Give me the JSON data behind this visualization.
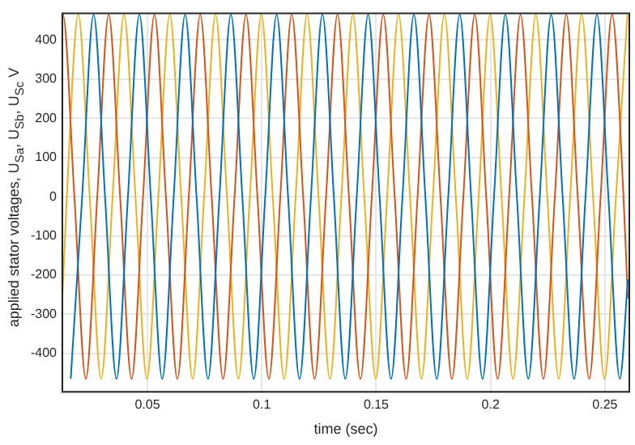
{
  "chart_data": {
    "type": "line",
    "xlabel": "time (sec)",
    "ylabel": "applied stator voltages, U$_{Sa}$, U$_{Sb}$, U$_{Sc}$ V",
    "xlim": [
      0.0125,
      0.261
    ],
    "ylim": [
      -500,
      470
    ],
    "xticks": [
      0.05,
      0.1,
      0.15,
      0.2,
      0.25
    ],
    "yticks": [
      -400,
      -300,
      -200,
      -100,
      0,
      100,
      200,
      300,
      400
    ],
    "grid": true,
    "legend": false,
    "series": [
      {
        "color": "#0072bd",
        "x": [
          0.0165,
          0.0215,
          0.0265,
          0.0315,
          0.0365,
          0.0415,
          0.0465,
          0.0515,
          0.0565,
          0.0615,
          0.0665,
          0.0715,
          0.0765,
          0.0815,
          0.0865,
          0.0915,
          0.0965,
          0.1015,
          0.1065,
          0.1115,
          0.1165,
          0.1215,
          0.1265,
          0.1315,
          0.1365,
          0.1415,
          0.1465,
          0.1515,
          0.1565,
          0.1615,
          0.1665,
          0.1715,
          0.1765,
          0.1815,
          0.1865,
          0.1915,
          0.1965,
          0.2015,
          0.2065,
          0.2115,
          0.2165,
          0.2215,
          0.2265,
          0.2315,
          0.2365,
          0.2415,
          0.2465,
          0.2515,
          0.2565,
          0.26
        ],
        "values": [
          -465,
          0,
          465,
          0,
          -465,
          0,
          465,
          0,
          -465,
          0,
          465,
          0,
          -465,
          0,
          465,
          0,
          -465,
          0,
          465,
          0,
          -465,
          0,
          465,
          0,
          -465,
          0,
          465,
          0,
          -465,
          0,
          465,
          0,
          -465,
          0,
          465,
          0,
          -465,
          0,
          465,
          0,
          -465,
          0,
          465,
          0,
          -465,
          0,
          465,
          0,
          -465,
          -211
        ]
      },
      {
        "color": "#d95319",
        "x": [
          0.0125,
          0.0131,
          0.0181,
          0.0231,
          0.0281,
          0.0331,
          0.0381,
          0.0431,
          0.0481,
          0.0531,
          0.0581,
          0.0631,
          0.0681,
          0.0731,
          0.0781,
          0.0831,
          0.0881,
          0.0931,
          0.0981,
          0.1031,
          0.1081,
          0.1131,
          0.1181,
          0.1231,
          0.1281,
          0.1331,
          0.1381,
          0.1431,
          0.1481,
          0.1531,
          0.1581,
          0.1631,
          0.1681,
          0.1731,
          0.1781,
          0.1831,
          0.1881,
          0.1931,
          0.1981,
          0.2031,
          0.2081,
          0.2131,
          0.2181,
          0.2231,
          0.2281,
          0.2331,
          0.2381,
          0.2431,
          0.2481,
          0.2531,
          0.2581,
          0.26
        ],
        "values": [
          457,
          465,
          0,
          -465,
          0,
          465,
          0,
          -465,
          0,
          465,
          0,
          -465,
          0,
          465,
          0,
          -465,
          0,
          465,
          0,
          -465,
          0,
          465,
          0,
          -465,
          0,
          465,
          0,
          -465,
          0,
          465,
          0,
          -465,
          0,
          465,
          0,
          -465,
          0,
          465,
          0,
          -465,
          0,
          465,
          0,
          -465,
          0,
          465,
          0,
          -465,
          0,
          465,
          0,
          -260
        ]
      },
      {
        "color": "#edb120",
        "x": [
          0.0125,
          0.0148,
          0.0198,
          0.0248,
          0.0298,
          0.0348,
          0.0398,
          0.0448,
          0.0498,
          0.0548,
          0.0598,
          0.0648,
          0.0698,
          0.0748,
          0.0798,
          0.0848,
          0.0898,
          0.0948,
          0.0998,
          0.1048,
          0.1098,
          0.1148,
          0.1198,
          0.1248,
          0.1298,
          0.1348,
          0.1398,
          0.1448,
          0.1498,
          0.1548,
          0.1598,
          0.1648,
          0.1698,
          0.1748,
          0.1798,
          0.1848,
          0.1898,
          0.1948,
          0.1998,
          0.2048,
          0.2098,
          0.2148,
          0.2198,
          0.2248,
          0.2298,
          0.2348,
          0.2398,
          0.2448,
          0.2498,
          0.2548,
          0.2598
        ],
        "values": [
          -305,
          0,
          465,
          0,
          -465,
          0,
          465,
          0,
          -465,
          0,
          465,
          0,
          -465,
          0,
          465,
          0,
          -465,
          0,
          465,
          0,
          -465,
          0,
          465,
          0,
          -465,
          0,
          465,
          0,
          -465,
          0,
          465,
          0,
          -465,
          0,
          465,
          0,
          -465,
          0,
          465,
          0,
          -465,
          0,
          465,
          0,
          -465,
          0,
          465,
          0,
          -465,
          0,
          465
        ]
      }
    ]
  }
}
